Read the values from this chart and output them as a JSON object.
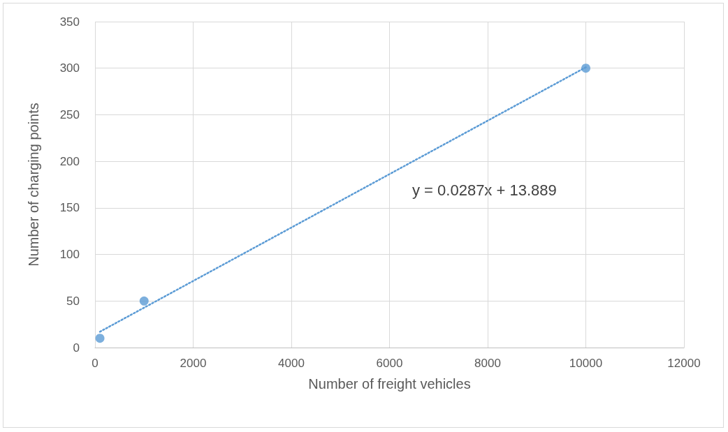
{
  "chart_data": {
    "type": "scatter",
    "xlabel": "Number of freight vehicles",
    "ylabel": "Number of charging points",
    "series": [
      {
        "color": "#5b9bd5",
        "x": [
          100,
          1000,
          10000
        ],
        "values": [
          10,
          50,
          300
        ],
        "marker": "circle"
      },
      {
        "type": "line",
        "color": "#5b9bd5",
        "x": [
          100,
          10000
        ],
        "values": [
          17,
          301
        ],
        "line_style": "dotted",
        "marker": "none"
      }
    ],
    "xlim": [
      0,
      12000
    ],
    "xticks": [
      0,
      2000,
      4000,
      6000,
      8000,
      10000,
      12000
    ],
    "ylim": [
      0,
      350
    ],
    "yticks": [
      0,
      50,
      100,
      150,
      200,
      250,
      300,
      350
    ],
    "grid": true,
    "annotations": [
      "y = 0.0287x + 13.889"
    ]
  }
}
